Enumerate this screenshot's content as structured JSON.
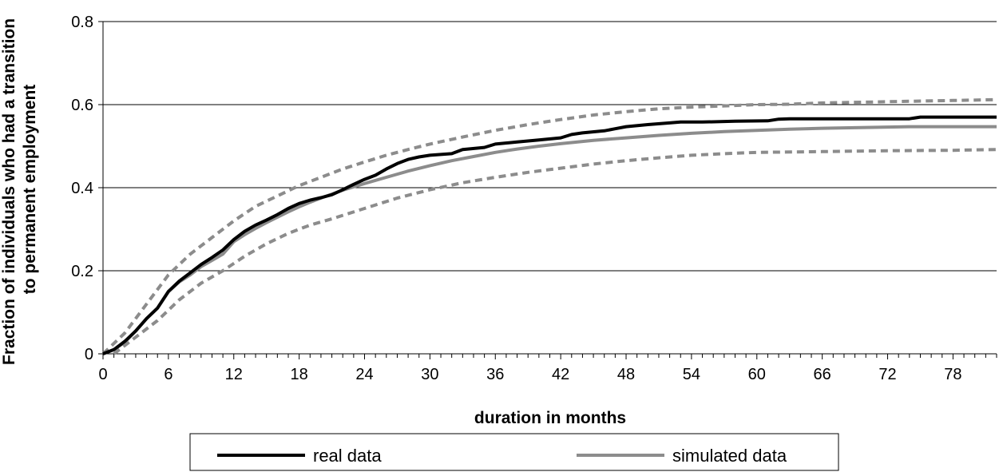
{
  "chart_data": {
    "type": "line",
    "title": "",
    "xlabel": "duration in months",
    "ylabel": "Fraction of individuals who had a transition to permanent employment",
    "ylabel_lines": [
      "Fraction of individuals who had a transition",
      "to permanent employment"
    ],
    "xlim": [
      0,
      82
    ],
    "ylim": [
      0,
      0.8
    ],
    "x_ticks": [
      0,
      6,
      12,
      18,
      24,
      30,
      36,
      42,
      48,
      54,
      60,
      66,
      72,
      78
    ],
    "y_ticks": [
      0,
      0.2,
      0.4,
      0.6,
      0.8
    ],
    "y_tick_labels": [
      "0",
      "0.2",
      "0.4",
      "0.6",
      "0.8"
    ],
    "grid": "horizontal",
    "legend_position": "bottom",
    "series": [
      {
        "name": "real data",
        "color": "#000000",
        "style": "solid",
        "legend": true,
        "points": [
          [
            0,
            0
          ],
          [
            1,
            0.01
          ],
          [
            2,
            0.03
          ],
          [
            3,
            0.055
          ],
          [
            4,
            0.085
          ],
          [
            5,
            0.11
          ],
          [
            6,
            0.15
          ],
          [
            7,
            0.175
          ],
          [
            8,
            0.195
          ],
          [
            9,
            0.215
          ],
          [
            10,
            0.232
          ],
          [
            11,
            0.25
          ],
          [
            12,
            0.275
          ],
          [
            13,
            0.295
          ],
          [
            14,
            0.31
          ],
          [
            15,
            0.322
          ],
          [
            16,
            0.335
          ],
          [
            17,
            0.35
          ],
          [
            18,
            0.362
          ],
          [
            19,
            0.37
          ],
          [
            20,
            0.376
          ],
          [
            21,
            0.383
          ],
          [
            22,
            0.395
          ],
          [
            23,
            0.408
          ],
          [
            24,
            0.42
          ],
          [
            25,
            0.43
          ],
          [
            26,
            0.445
          ],
          [
            27,
            0.458
          ],
          [
            28,
            0.468
          ],
          [
            29,
            0.474
          ],
          [
            30,
            0.478
          ],
          [
            32,
            0.482
          ],
          [
            33,
            0.492
          ],
          [
            35,
            0.497
          ],
          [
            36,
            0.505
          ],
          [
            38,
            0.51
          ],
          [
            40,
            0.515
          ],
          [
            42,
            0.52
          ],
          [
            43,
            0.528
          ],
          [
            44,
            0.532
          ],
          [
            46,
            0.537
          ],
          [
            47,
            0.542
          ],
          [
            48,
            0.547
          ],
          [
            50,
            0.552
          ],
          [
            52,
            0.556
          ],
          [
            53,
            0.558
          ],
          [
            55,
            0.558
          ],
          [
            58,
            0.56
          ],
          [
            61,
            0.561
          ],
          [
            62,
            0.565
          ],
          [
            63,
            0.566
          ],
          [
            70,
            0.566
          ],
          [
            74,
            0.566
          ],
          [
            75,
            0.57
          ],
          [
            82,
            0.57
          ]
        ]
      },
      {
        "name": "simulated data",
        "color": "#8c8c8c",
        "style": "solid",
        "legend": true,
        "points": [
          [
            0,
            0
          ],
          [
            1,
            0.01
          ],
          [
            2,
            0.028
          ],
          [
            3,
            0.055
          ],
          [
            4,
            0.085
          ],
          [
            5,
            0.11
          ],
          [
            6,
            0.15
          ],
          [
            7,
            0.173
          ],
          [
            8,
            0.19
          ],
          [
            9,
            0.21
          ],
          [
            10,
            0.225
          ],
          [
            11,
            0.24
          ],
          [
            12,
            0.27
          ],
          [
            13,
            0.287
          ],
          [
            14,
            0.302
          ],
          [
            15,
            0.316
          ],
          [
            16,
            0.329
          ],
          [
            17,
            0.342
          ],
          [
            18,
            0.354
          ],
          [
            19,
            0.365
          ],
          [
            20,
            0.375
          ],
          [
            22,
            0.394
          ],
          [
            24,
            0.41
          ],
          [
            26,
            0.425
          ],
          [
            28,
            0.44
          ],
          [
            30,
            0.453
          ],
          [
            32,
            0.465
          ],
          [
            34,
            0.475
          ],
          [
            36,
            0.485
          ],
          [
            38,
            0.493
          ],
          [
            40,
            0.5
          ],
          [
            42,
            0.506
          ],
          [
            45,
            0.514
          ],
          [
            48,
            0.52
          ],
          [
            51,
            0.526
          ],
          [
            54,
            0.531
          ],
          [
            57,
            0.535
          ],
          [
            60,
            0.538
          ],
          [
            63,
            0.541
          ],
          [
            66,
            0.543
          ],
          [
            70,
            0.545
          ],
          [
            74,
            0.547
          ],
          [
            78,
            0.547
          ],
          [
            82,
            0.547
          ]
        ]
      },
      {
        "name": "",
        "color": "#8c8c8c",
        "style": "dashed",
        "legend": false,
        "points": [
          [
            0,
            0
          ],
          [
            2,
            0.05
          ],
          [
            4,
            0.12
          ],
          [
            6,
            0.19
          ],
          [
            8,
            0.24
          ],
          [
            10,
            0.28
          ],
          [
            12,
            0.32
          ],
          [
            14,
            0.355
          ],
          [
            16,
            0.38
          ],
          [
            18,
            0.405
          ],
          [
            20,
            0.425
          ],
          [
            22,
            0.445
          ],
          [
            24,
            0.462
          ],
          [
            26,
            0.478
          ],
          [
            28,
            0.492
          ],
          [
            30,
            0.505
          ],
          [
            33,
            0.522
          ],
          [
            36,
            0.538
          ],
          [
            39,
            0.552
          ],
          [
            42,
            0.564
          ],
          [
            45,
            0.575
          ],
          [
            48,
            0.583
          ],
          [
            51,
            0.59
          ],
          [
            54,
            0.594
          ],
          [
            57,
            0.597
          ],
          [
            60,
            0.6
          ],
          [
            63,
            0.601
          ],
          [
            66,
            0.604
          ],
          [
            70,
            0.606
          ],
          [
            74,
            0.608
          ],
          [
            78,
            0.61
          ],
          [
            82,
            0.612
          ]
        ]
      },
      {
        "name": "",
        "color": "#8c8c8c",
        "style": "dashed",
        "legend": false,
        "points": [
          [
            1,
            0
          ],
          [
            3,
            0.04
          ],
          [
            5,
            0.08
          ],
          [
            7,
            0.13
          ],
          [
            9,
            0.17
          ],
          [
            11,
            0.2
          ],
          [
            13,
            0.235
          ],
          [
            15,
            0.265
          ],
          [
            17,
            0.29
          ],
          [
            19,
            0.31
          ],
          [
            21,
            0.325
          ],
          [
            24,
            0.35
          ],
          [
            27,
            0.375
          ],
          [
            30,
            0.395
          ],
          [
            33,
            0.412
          ],
          [
            36,
            0.425
          ],
          [
            39,
            0.437
          ],
          [
            42,
            0.447
          ],
          [
            45,
            0.457
          ],
          [
            48,
            0.465
          ],
          [
            51,
            0.472
          ],
          [
            54,
            0.478
          ],
          [
            57,
            0.482
          ],
          [
            60,
            0.485
          ],
          [
            66,
            0.487
          ],
          [
            72,
            0.489
          ],
          [
            78,
            0.49
          ],
          [
            82,
            0.492
          ]
        ]
      }
    ]
  }
}
